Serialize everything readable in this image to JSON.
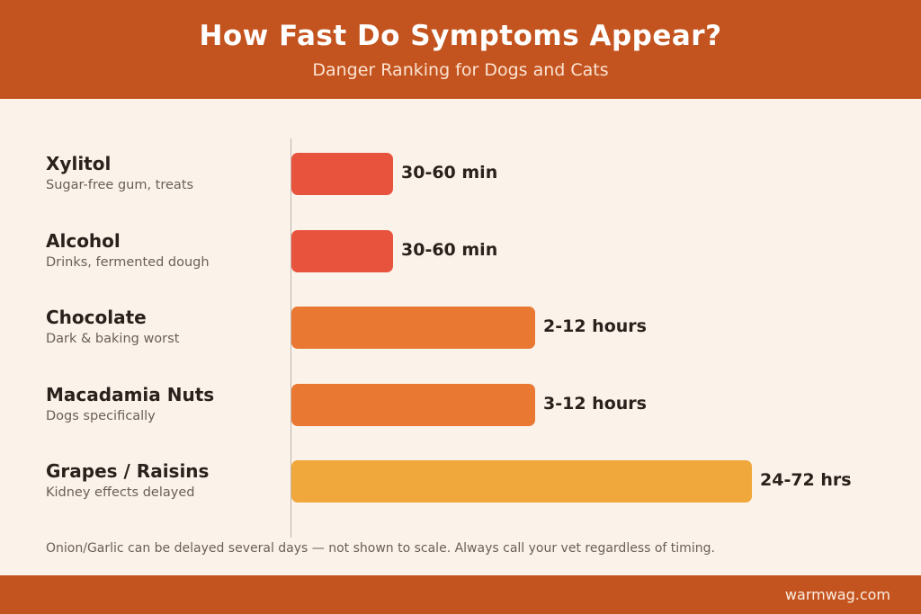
{
  "header": {
    "title": "How Fast Do Symptoms Appear?",
    "subtitle": "Danger Ranking for Dogs and Cats"
  },
  "chart_data": {
    "type": "bar",
    "orientation": "horizontal",
    "title": "How Fast Do Symptoms Appear?",
    "subtitle": "Danger Ranking for Dogs and Cats",
    "categories": [
      "Xylitol",
      "Alcohol",
      "Chocolate",
      "Macadamia Nuts",
      "Grapes / Raisins"
    ],
    "descriptions": [
      "Sugar-free gum, treats",
      "Drinks, fermented dough",
      "Dark & baking worst",
      "Dogs specifically",
      "Kidney effects delayed"
    ],
    "value_labels": [
      "30-60 min",
      "30-60 min",
      "2-12 hours",
      "3-12 hours",
      "24-72 hrs"
    ],
    "bar_length_relative": [
      0.22,
      0.22,
      0.53,
      0.53,
      1.0
    ],
    "colors": [
      "#e8533e",
      "#e8533e",
      "#e87832",
      "#e87832",
      "#f0a83c"
    ],
    "grid": false,
    "xlabel": "",
    "ylabel": ""
  },
  "footnote": "Onion/Garlic can be delayed several days — not shown to scale. Always call your vet regardless of timing.",
  "footer": {
    "site": "warmwag.com"
  }
}
